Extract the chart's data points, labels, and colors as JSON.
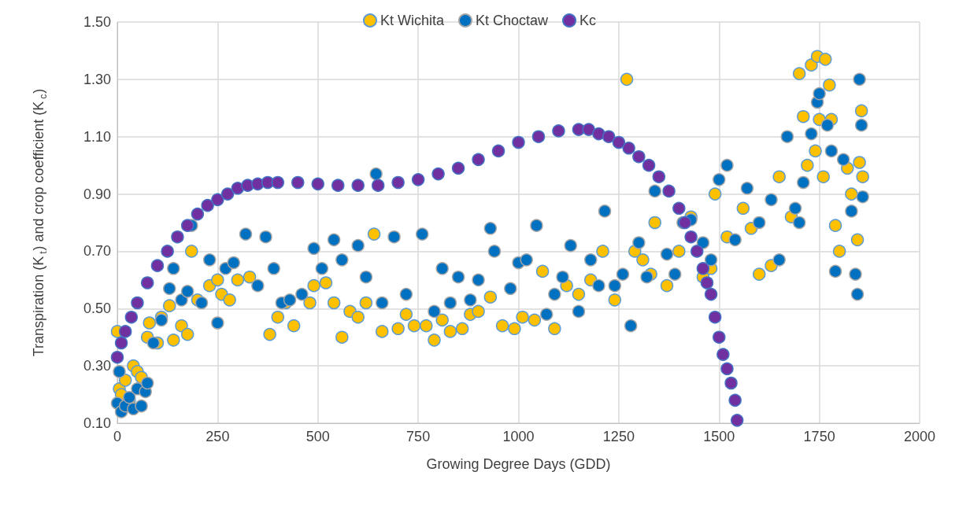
{
  "chart_data": {
    "type": "scatter",
    "xlabel": "Growing Degree Days (GDD)",
    "ylabel": "Transpiration (K$_{t}$) and crop coefficient (K$_{c}$)",
    "xlim": [
      0,
      2000
    ],
    "xticks": [
      0,
      250,
      500,
      750,
      1000,
      1250,
      1500,
      1750,
      2000
    ],
    "ylim": [
      0.1,
      1.5
    ],
    "yticks": [
      {
        "value": 0.1,
        "label": "0.10"
      },
      {
        "value": 0.3,
        "label": "0.30"
      },
      {
        "value": 0.5,
        "label": "0.50"
      },
      {
        "value": 0.7,
        "label": "0.70"
      },
      {
        "value": 0.9,
        "label": "0.90"
      },
      {
        "value": 1.1,
        "label": "1.10"
      },
      {
        "value": 1.3,
        "label": "1.30"
      },
      {
        "value": 1.5,
        "label": "1.50"
      }
    ],
    "grid": true,
    "legend": "top",
    "marker": "circle",
    "series": [
      {
        "name": "Kt Wichita",
        "color": "#ffc000",
        "x": [
          0,
          5,
          10,
          20,
          30,
          40,
          50,
          60,
          75,
          80,
          100,
          110,
          130,
          140,
          160,
          175,
          185,
          200,
          230,
          250,
          260,
          280,
          300,
          330,
          380,
          400,
          420,
          440,
          480,
          490,
          520,
          540,
          560,
          580,
          600,
          620,
          640,
          660,
          700,
          720,
          740,
          770,
          790,
          810,
          830,
          860,
          880,
          900,
          930,
          960,
          990,
          1010,
          1040,
          1060,
          1090,
          1120,
          1150,
          1180,
          1210,
          1240,
          1270,
          1290,
          1310,
          1330,
          1340,
          1370,
          1400,
          1430,
          1460,
          1480,
          1490,
          1520,
          1560,
          1580,
          1600,
          1630,
          1650,
          1680,
          1700,
          1710,
          1720,
          1730,
          1740,
          1745,
          1750,
          1760,
          1765,
          1775,
          1780,
          1790,
          1800,
          1820,
          1830,
          1845,
          1850,
          1855,
          1858
        ],
        "values": [
          0.42,
          0.22,
          0.2,
          0.25,
          0.18,
          0.3,
          0.28,
          0.26,
          0.4,
          0.45,
          0.38,
          0.47,
          0.51,
          0.39,
          0.44,
          0.41,
          0.7,
          0.53,
          0.58,
          0.6,
          0.55,
          0.53,
          0.6,
          0.61,
          0.41,
          0.47,
          0.52,
          0.44,
          0.52,
          0.58,
          0.59,
          0.52,
          0.4,
          0.49,
          0.47,
          0.52,
          0.76,
          0.42,
          0.43,
          0.48,
          0.44,
          0.44,
          0.39,
          0.46,
          0.42,
          0.43,
          0.48,
          0.49,
          0.54,
          0.44,
          0.43,
          0.47,
          0.46,
          0.63,
          0.43,
          0.58,
          0.55,
          0.6,
          0.7,
          0.53,
          1.3,
          0.7,
          0.67,
          0.62,
          0.8,
          0.58,
          0.7,
          0.82,
          0.61,
          0.64,
          0.9,
          0.75,
          0.85,
          0.78,
          0.62,
          0.65,
          0.96,
          0.82,
          1.32,
          1.17,
          1.0,
          1.35,
          1.05,
          1.38,
          1.16,
          0.96,
          1.37,
          1.28,
          1.16,
          0.79,
          0.7,
          0.99,
          0.9,
          0.74,
          1.01,
          1.19,
          0.96
        ]
      },
      {
        "name": "Kt Choctaw",
        "color": "#0070c0",
        "x": [
          0,
          5,
          10,
          20,
          30,
          40,
          50,
          60,
          70,
          75,
          90,
          110,
          130,
          140,
          160,
          175,
          185,
          210,
          230,
          250,
          270,
          290,
          320,
          350,
          370,
          390,
          410,
          430,
          460,
          490,
          510,
          540,
          560,
          600,
          620,
          645,
          660,
          690,
          720,
          760,
          790,
          810,
          830,
          850,
          880,
          900,
          930,
          940,
          980,
          1000,
          1020,
          1045,
          1070,
          1090,
          1110,
          1130,
          1150,
          1180,
          1200,
          1215,
          1240,
          1260,
          1280,
          1300,
          1320,
          1340,
          1370,
          1390,
          1410,
          1430,
          1460,
          1480,
          1500,
          1520,
          1540,
          1570,
          1600,
          1630,
          1650,
          1670,
          1690,
          1700,
          1710,
          1730,
          1745,
          1750,
          1770,
          1780,
          1790,
          1810,
          1830,
          1840,
          1845,
          1850,
          1855,
          1858
        ],
        "values": [
          0.17,
          0.28,
          0.14,
          0.16,
          0.19,
          0.15,
          0.22,
          0.16,
          0.21,
          0.24,
          0.38,
          0.46,
          0.57,
          0.64,
          0.53,
          0.56,
          0.79,
          0.52,
          0.67,
          0.45,
          0.64,
          0.66,
          0.76,
          0.58,
          0.75,
          0.64,
          0.52,
          0.53,
          0.55,
          0.71,
          0.64,
          0.74,
          0.67,
          0.72,
          0.61,
          0.97,
          0.52,
          0.75,
          0.55,
          0.76,
          0.49,
          0.64,
          0.52,
          0.61,
          0.53,
          0.6,
          0.78,
          0.7,
          0.57,
          0.66,
          0.67,
          0.79,
          0.48,
          0.55,
          0.61,
          0.72,
          0.49,
          0.67,
          0.58,
          0.84,
          0.58,
          0.62,
          0.44,
          0.73,
          0.61,
          0.91,
          0.69,
          0.62,
          0.8,
          0.81,
          0.73,
          0.67,
          0.95,
          1.0,
          0.74,
          0.92,
          0.8,
          0.88,
          0.67,
          1.1,
          0.85,
          0.8,
          0.94,
          1.11,
          1.22,
          1.25,
          1.14,
          1.05,
          0.63,
          1.02,
          0.84,
          0.62,
          0.55,
          1.3,
          1.14,
          0.89
        ]
      },
      {
        "name": "Kc",
        "color": "#7030a0",
        "x": [
          0,
          10,
          20,
          35,
          50,
          75,
          100,
          125,
          150,
          175,
          200,
          225,
          250,
          275,
          300,
          325,
          350,
          375,
          400,
          450,
          500,
          550,
          600,
          650,
          700,
          750,
          800,
          850,
          900,
          950,
          1000,
          1050,
          1100,
          1150,
          1175,
          1200,
          1225,
          1250,
          1275,
          1300,
          1325,
          1350,
          1375,
          1400,
          1415,
          1430,
          1445,
          1460,
          1470,
          1480,
          1490,
          1500,
          1510,
          1520,
          1530,
          1540,
          1545
        ],
        "values": [
          0.33,
          0.38,
          0.42,
          0.47,
          0.52,
          0.59,
          0.65,
          0.7,
          0.75,
          0.79,
          0.83,
          0.86,
          0.88,
          0.9,
          0.92,
          0.93,
          0.935,
          0.94,
          0.94,
          0.94,
          0.935,
          0.93,
          0.93,
          0.93,
          0.94,
          0.95,
          0.97,
          0.99,
          1.02,
          1.05,
          1.08,
          1.1,
          1.12,
          1.125,
          1.125,
          1.11,
          1.1,
          1.08,
          1.06,
          1.03,
          1.0,
          0.96,
          0.91,
          0.85,
          0.8,
          0.75,
          0.7,
          0.64,
          0.59,
          0.55,
          0.47,
          0.4,
          0.34,
          0.29,
          0.24,
          0.18,
          0.11
        ]
      }
    ]
  }
}
